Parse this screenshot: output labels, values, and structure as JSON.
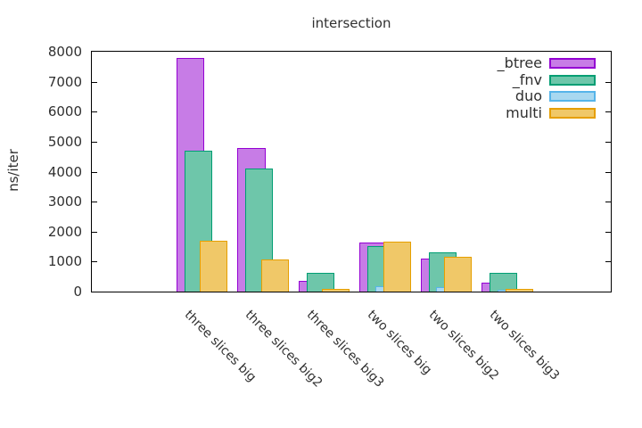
{
  "window": {
    "title": "intersection"
  },
  "chart_data": {
    "type": "bar",
    "style": "overlapping-cluster",
    "title": "intersection",
    "xlabel": "",
    "ylabel": "ns/iter",
    "ylim": [
      0,
      8000
    ],
    "yticks": [
      0,
      1000,
      2000,
      3000,
      4000,
      5000,
      6000,
      7000,
      8000
    ],
    "grid": false,
    "legend_position": "top-right-inside",
    "categories": [
      "three slices big",
      "three slices big2",
      "three slices big3",
      "two slices big",
      "two slices big2",
      "two slices big3"
    ],
    "series": [
      {
        "name": "_btree",
        "border_color": "#9400d3",
        "fill_color": "#c77ce6",
        "values": [
          7800,
          4800,
          350,
          1630,
          1100,
          310
        ]
      },
      {
        "name": "_fnv",
        "border_color": "#009e73",
        "fill_color": "#6ec6aa",
        "values": [
          4700,
          4100,
          620,
          1530,
          1300,
          615
        ]
      },
      {
        "name": "duo",
        "border_color": "#56b4e9",
        "fill_color": "#a8d8f0",
        "values": [
          null,
          null,
          null,
          175,
          150,
          65
        ]
      },
      {
        "name": "multi",
        "border_color": "#e69f00",
        "fill_color": "#f0c868",
        "values": [
          1700,
          1080,
          95,
          1660,
          1150,
          100
        ]
      }
    ],
    "axis_color": "#000000",
    "text_color": "#303030"
  }
}
